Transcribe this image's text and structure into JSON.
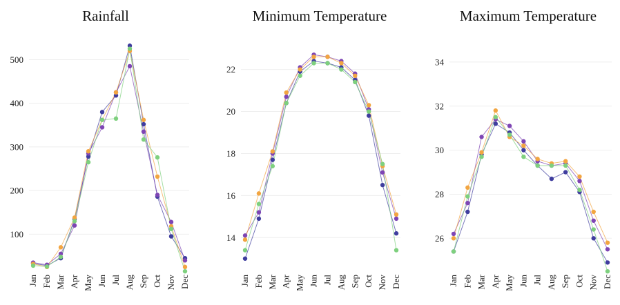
{
  "chart_data": [
    {
      "type": "line",
      "title": "Rainfall",
      "categories": [
        "Jan",
        "Feb",
        "Mar",
        "Apr",
        "May",
        "Jun",
        "Jul",
        "Aug",
        "Sep",
        "Oct",
        "Nov",
        "Dec"
      ],
      "ylim": [
        20,
        545
      ],
      "yticks": [
        100,
        200,
        300,
        400,
        500
      ],
      "grid": true,
      "series": [
        {
          "color": "#3f3d9e",
          "values": [
            33,
            28,
            45,
            135,
            278,
            380,
            418,
            532,
            352,
            186,
            95,
            45
          ]
        },
        {
          "color": "#7e45b4",
          "values": [
            35,
            30,
            55,
            120,
            285,
            345,
            425,
            485,
            335,
            190,
            128,
            40
          ]
        },
        {
          "color": "#f2a541",
          "values": [
            32,
            25,
            70,
            138,
            290,
            362,
            425,
            520,
            362,
            232,
            118,
            25
          ]
        },
        {
          "color": "#7ed07e",
          "values": [
            28,
            26,
            48,
            130,
            265,
            362,
            365,
            525,
            317,
            276,
            112,
            15
          ]
        }
      ]
    },
    {
      "type": "line",
      "title": "Minimum Temperature",
      "categories": [
        "Jan",
        "Feb",
        "Mar",
        "Apr",
        "May",
        "Jun",
        "Jul",
        "Aug",
        "Sep",
        "Oct",
        "Nov",
        "Dec"
      ],
      "ylim": [
        12.5,
        23.4
      ],
      "yticks": [
        14,
        16,
        18,
        20,
        22
      ],
      "grid": true,
      "series": [
        {
          "color": "#3f3d9e",
          "values": [
            13.0,
            14.9,
            17.7,
            20.4,
            21.9,
            22.4,
            22.3,
            22.1,
            21.5,
            19.8,
            16.5,
            14.2
          ]
        },
        {
          "color": "#7e45b4",
          "values": [
            14.1,
            15.2,
            18.0,
            20.7,
            22.1,
            22.7,
            22.6,
            22.4,
            21.8,
            20.1,
            17.1,
            14.9
          ]
        },
        {
          "color": "#f2a541",
          "values": [
            13.9,
            16.1,
            18.1,
            20.9,
            22.0,
            22.6,
            22.6,
            22.3,
            21.7,
            20.3,
            17.4,
            15.1
          ]
        },
        {
          "color": "#7ed07e",
          "values": [
            13.4,
            15.6,
            17.4,
            20.4,
            21.7,
            22.3,
            22.3,
            22.0,
            21.4,
            20.0,
            17.5,
            13.4
          ]
        }
      ]
    },
    {
      "type": "line",
      "title": "Maximum Temperature",
      "categories": [
        "Jan",
        "Feb",
        "Mar",
        "Apr",
        "May",
        "Jun",
        "Jul",
        "Aug",
        "Sep",
        "Oct",
        "Nov",
        "Dec"
      ],
      "ylim": [
        24.6,
        35.0
      ],
      "yticks": [
        26,
        28,
        30,
        32,
        34
      ],
      "grid": true,
      "series": [
        {
          "color": "#3f3d9e",
          "values": [
            25.4,
            27.2,
            29.8,
            31.2,
            30.8,
            30.0,
            29.3,
            28.7,
            29.0,
            28.1,
            26.0,
            24.9
          ]
        },
        {
          "color": "#7e45b4",
          "values": [
            26.2,
            27.6,
            30.6,
            31.4,
            31.1,
            30.4,
            29.5,
            29.3,
            29.4,
            28.6,
            26.8,
            25.5
          ]
        },
        {
          "color": "#f2a541",
          "values": [
            26.0,
            28.3,
            29.9,
            31.8,
            30.6,
            30.2,
            29.6,
            29.4,
            29.5,
            28.8,
            27.2,
            25.8
          ]
        },
        {
          "color": "#7ed07e",
          "values": [
            25.4,
            27.9,
            29.7,
            31.5,
            30.7,
            29.7,
            29.3,
            29.3,
            29.3,
            28.2,
            26.4,
            24.5
          ]
        }
      ]
    }
  ]
}
